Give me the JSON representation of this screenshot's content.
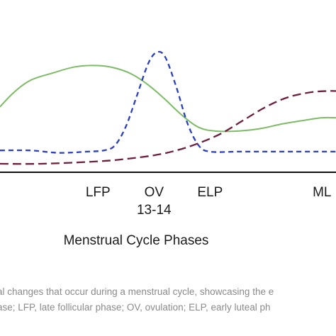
{
  "chart_data": {
    "type": "line",
    "xlabel": "Menstrual Cycle Phases",
    "ylabel": "",
    "grid": false,
    "legend": "none",
    "x_tick_labels": [
      {
        "lines": [
          "LFP"
        ],
        "x": 2
      },
      {
        "lines": [
          "OV",
          "13-14"
        ],
        "x": 3
      },
      {
        "lines": [
          "ELP"
        ],
        "x": 4
      },
      {
        "lines": [
          "ML"
        ],
        "x": 6
      }
    ],
    "xlim": [
      0.25,
      6.25
    ],
    "ylim": [
      0,
      100
    ],
    "series": [
      {
        "color": "#7dbb67",
        "style": "solid",
        "x": [
          0.25,
          0.5,
          0.8,
          1.2,
          1.6,
          2.0,
          2.3,
          2.6,
          2.9,
          3.2,
          3.5,
          3.8,
          4.1,
          4.5,
          4.9,
          5.3,
          5.7,
          6.0,
          6.25
        ],
        "values": [
          54,
          66,
          76,
          82,
          87,
          88,
          86,
          81,
          72,
          60,
          47,
          37,
          34,
          34,
          36,
          40,
          43,
          45,
          45
        ]
      },
      {
        "color": "#2b3fbf",
        "style": "dashed",
        "x": [
          0.25,
          0.8,
          1.3,
          1.8,
          2.1,
          2.3,
          2.5,
          2.7,
          2.9,
          3.05,
          3.2,
          3.4,
          3.6,
          3.8,
          4.0,
          4.5,
          5.0,
          5.5,
          6.0,
          6.25
        ],
        "values": [
          18,
          18,
          16,
          17,
          18,
          22,
          38,
          64,
          90,
          99,
          95,
          70,
          40,
          22,
          17,
          17,
          17,
          17,
          17,
          17
        ]
      },
      {
        "color": "#6e1f3f",
        "style": "dashed",
        "x": [
          0.25,
          1.0,
          2.0,
          2.5,
          3.0,
          3.4,
          3.8,
          4.2,
          4.6,
          5.0,
          5.4,
          5.8,
          6.1,
          6.25
        ],
        "values": [
          7,
          7,
          9,
          11,
          14,
          18,
          24,
          32,
          43,
          54,
          62,
          66,
          67,
          67
        ]
      }
    ]
  },
  "caption_lines": [
    "al changes that occur during a menstrual cycle, showcasing the e",
    "ase; LFP, late follicular phase; OV, ovulation; ELP, early luteal ph"
  ]
}
